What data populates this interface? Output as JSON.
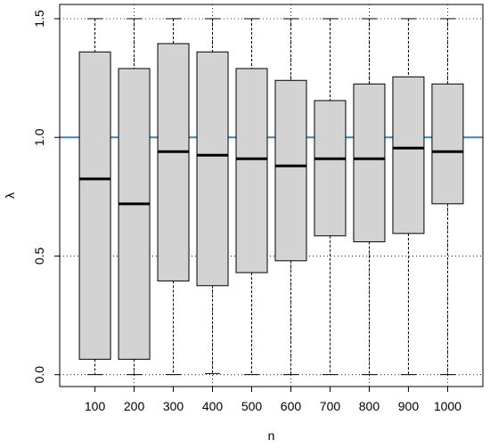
{
  "chart_data": {
    "type": "boxplot",
    "title": "",
    "xlabel": "n",
    "ylabel": "λ",
    "ylim": [
      -0.05,
      1.56
    ],
    "yticks": [
      0.0,
      0.5,
      1.0,
      1.5
    ],
    "ytick_labels": [
      "0.0",
      "0.5",
      "1.0",
      "1.5"
    ],
    "grid": "dotted at y ticks and every other category",
    "reference_line": {
      "y": 1.0,
      "color": "#3a87c0"
    },
    "box_fill": "#d3d3d3",
    "categories": [
      "100",
      "200",
      "300",
      "400",
      "500",
      "600",
      "700",
      "800",
      "900",
      "1000"
    ],
    "boxes": [
      {
        "label": "100",
        "min": 0.0,
        "q1": 0.065,
        "median": 0.825,
        "q3": 1.36,
        "max": 1.5
      },
      {
        "label": "200",
        "min": 0.0,
        "q1": 0.065,
        "median": 0.72,
        "q3": 1.29,
        "max": 1.5
      },
      {
        "label": "300",
        "min": 0.0,
        "q1": 0.395,
        "median": 0.94,
        "q3": 1.395,
        "max": 1.5
      },
      {
        "label": "400",
        "min": 0.005,
        "q1": 0.375,
        "median": 0.925,
        "q3": 1.36,
        "max": 1.5
      },
      {
        "label": "500",
        "min": 0.0,
        "q1": 0.43,
        "median": 0.91,
        "q3": 1.29,
        "max": 1.5
      },
      {
        "label": "600",
        "min": 0.0,
        "q1": 0.48,
        "median": 0.88,
        "q3": 1.24,
        "max": 1.5
      },
      {
        "label": "700",
        "min": 0.0,
        "q1": 0.585,
        "median": 0.91,
        "q3": 1.155,
        "max": 1.5
      },
      {
        "label": "800",
        "min": 0.0,
        "q1": 0.56,
        "median": 0.91,
        "q3": 1.225,
        "max": 1.5
      },
      {
        "label": "900",
        "min": 0.0,
        "q1": 0.595,
        "median": 0.955,
        "q3": 1.255,
        "max": 1.5
      },
      {
        "label": "1000",
        "min": 0.0,
        "q1": 0.72,
        "median": 0.94,
        "q3": 1.225,
        "max": 1.5
      }
    ]
  }
}
